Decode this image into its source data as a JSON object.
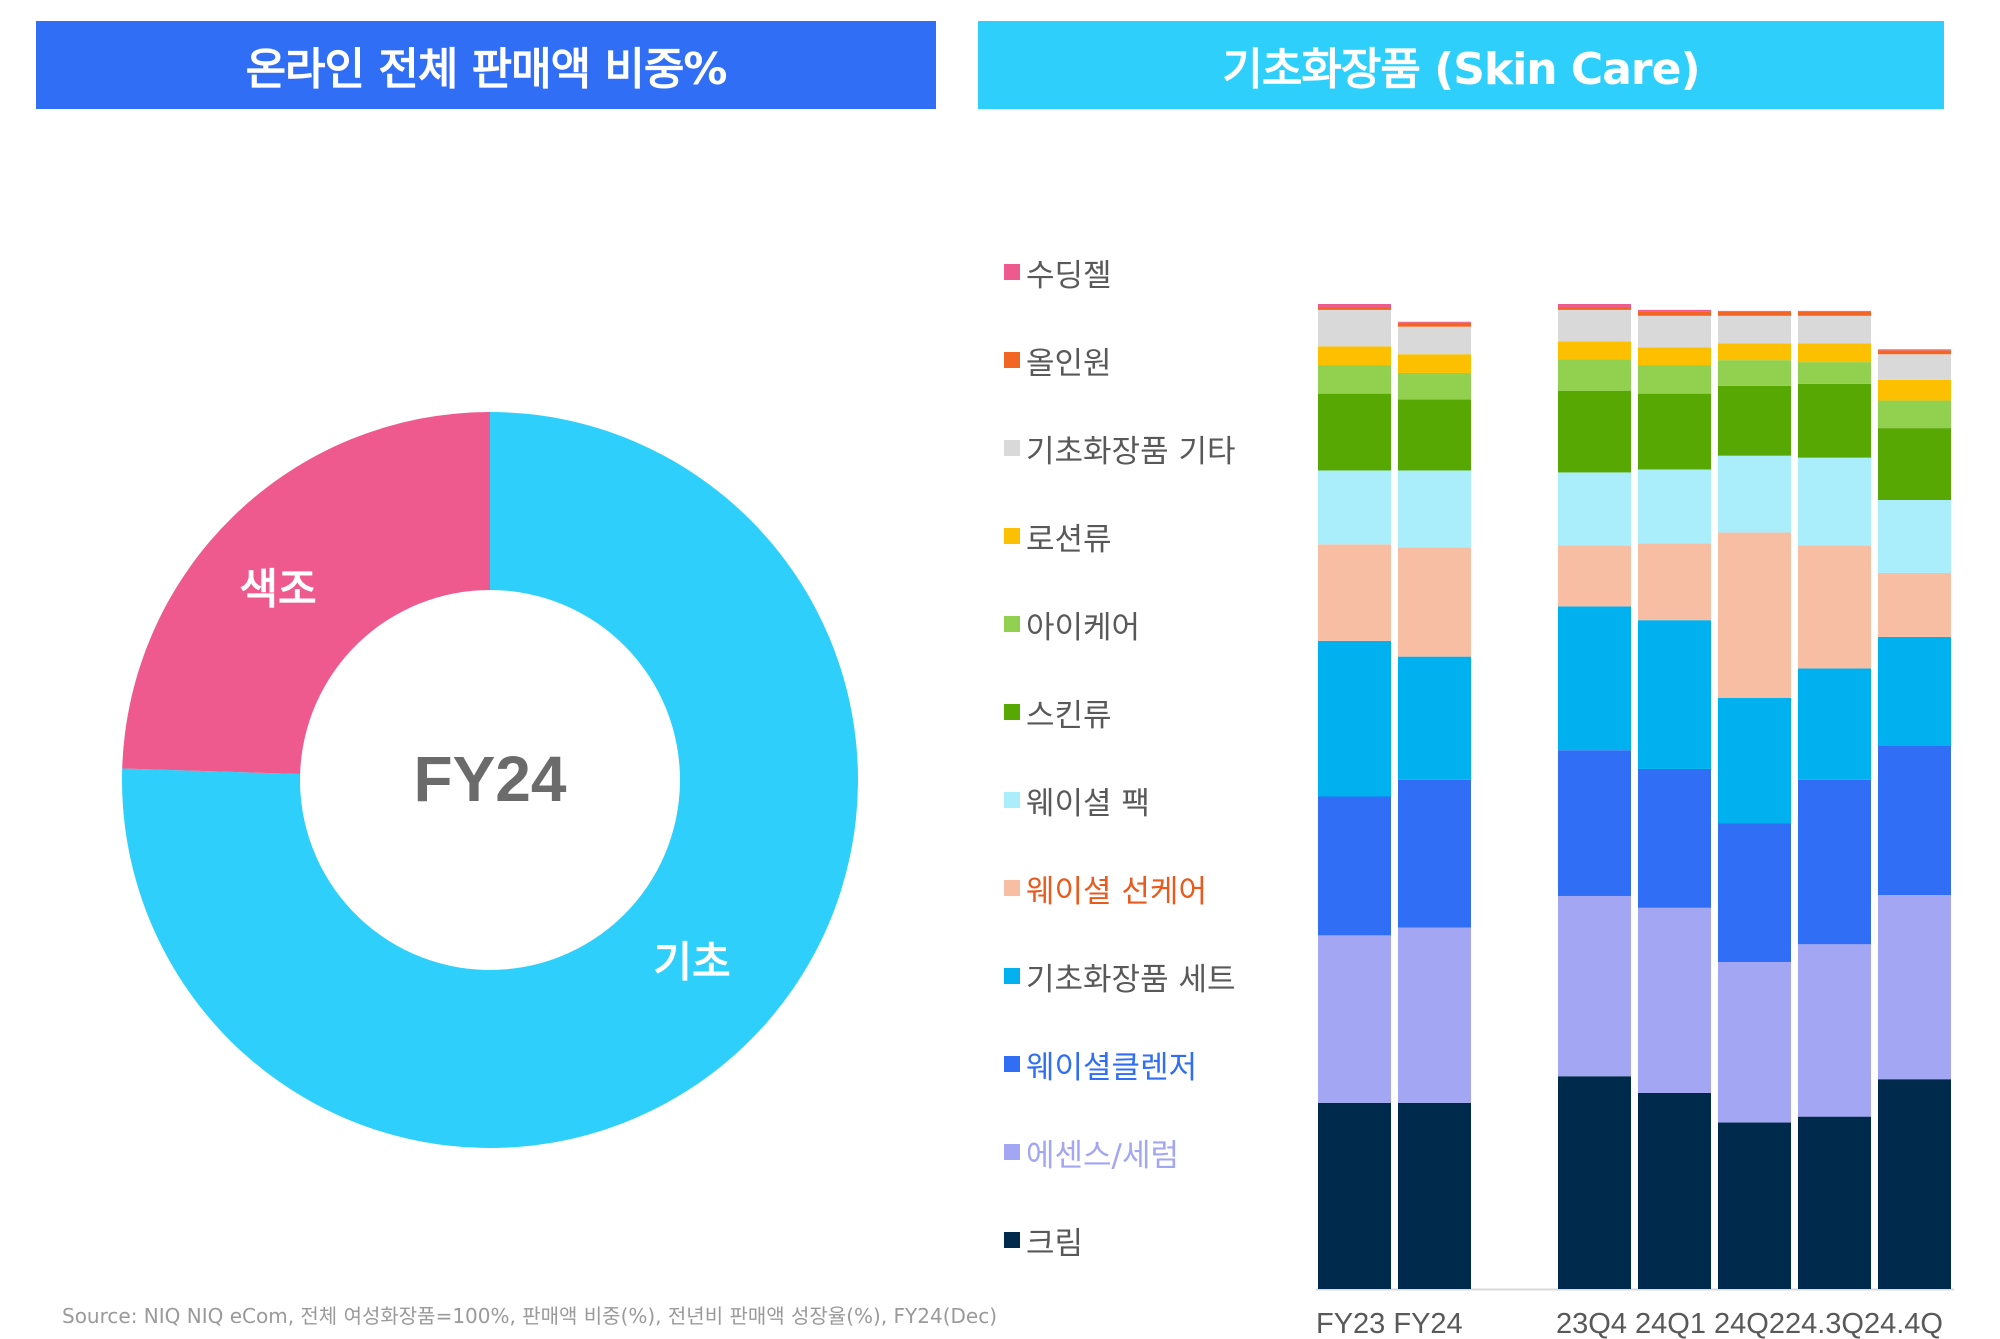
{
  "colors": {
    "banner_left": "#2f6ef5",
    "banner_right": "#2ed0fb",
    "donut_makeup": "#ee5a8e",
    "donut_skincare": "#2ed0fb",
    "category_muted_text": "#595959",
    "source_text": "#9a9a9a"
  },
  "left_panel": {
    "banner_title": "온라인 전체 판매액 비중%"
  },
  "right_panel": {
    "banner_title": "기초화장품 (Skin Care)"
  },
  "source_note": "Source: NIQ NIQ eCom, 전체 여성화장품=100%, 판매액 비중(%), 전년비 판매액 성장율(%), FY24(Dec)",
  "chart_data": [
    {
      "type": "donut",
      "center_label": "FY24",
      "slices": [
        {
          "label": "기초",
          "value": 75.5,
          "color": "#2ed0fb"
        },
        {
          "label": "색조",
          "value": 24.5,
          "color": "#ee5a8e"
        }
      ]
    },
    {
      "type": "stacked_bar",
      "categories": [
        "FY23",
        "FY24",
        "23Q4",
        "24Q1",
        "24Q2",
        "24.3Q",
        "24.4Q"
      ],
      "category_axis_text": [
        "FY23 FY24",
        "23Q4 24Q1 24Q224.3Q24.4Q"
      ],
      "category_groups": [
        [
          0,
          1
        ],
        [
          2,
          3,
          4,
          5,
          6
        ]
      ],
      "series": [
        {
          "name": "크림",
          "color": "#002a4b",
          "label_color": "#595959",
          "values": [
            18.9,
            18.9,
            21.6,
            19.9,
            16.9,
            17.5,
            21.3
          ]
        },
        {
          "name": "에센스/세럼",
          "color": "#a3a6f2",
          "label_color": "#a3a6f2",
          "values": [
            17.0,
            17.8,
            18.3,
            18.8,
            16.3,
            17.5,
            18.7
          ]
        },
        {
          "name": "웨이셜클렌저",
          "color": "#2f6ef5",
          "label_color": "#2f6ef5",
          "values": [
            14.1,
            15.0,
            14.8,
            14.1,
            14.1,
            16.7,
            15.2
          ]
        },
        {
          "name": "기초화장품 세트",
          "color": "#00b0ef",
          "label_color": "#595959",
          "values": [
            15.8,
            12.5,
            14.6,
            15.1,
            12.7,
            11.3,
            11.0
          ]
        },
        {
          "name": "웨이셜 선케어",
          "color": "#f8bea4",
          "label_color": "#eb5a1c",
          "values": [
            9.8,
            11.1,
            6.2,
            7.8,
            16.8,
            12.5,
            6.5
          ]
        },
        {
          "name": "웨이셜 팩",
          "color": "#aaeefc",
          "label_color": "#595959",
          "values": [
            7.5,
            7.8,
            7.4,
            7.5,
            7.8,
            8.9,
            7.4
          ]
        },
        {
          "name": "스킨류",
          "color": "#57a802",
          "label_color": "#595959",
          "values": [
            7.8,
            7.2,
            8.3,
            7.7,
            7.1,
            7.5,
            7.3
          ]
        },
        {
          "name": "아이케어",
          "color": "#92d050",
          "label_color": "#595959",
          "values": [
            2.9,
            2.7,
            3.2,
            2.9,
            2.6,
            2.2,
            2.8
          ]
        },
        {
          "name": "로션류",
          "color": "#fdc000",
          "label_color": "#595959",
          "values": [
            1.9,
            1.9,
            1.8,
            1.8,
            1.7,
            1.9,
            2.1
          ]
        },
        {
          "name": "기초화장품 기타",
          "color": "#d9d9d9",
          "label_color": "#595959",
          "values": [
            3.7,
            2.8,
            3.2,
            3.2,
            2.8,
            2.8,
            2.6
          ]
        },
        {
          "name": "올인원",
          "color": "#f26522",
          "label_color": "#595959",
          "values": [
            0.3,
            0.4,
            0.3,
            0.4,
            0.4,
            0.4,
            0.4
          ]
        },
        {
          "name": "수딩젤",
          "color": "#ee5a8e",
          "label_color": "#595959",
          "values": [
            0.3,
            0.1,
            0.3,
            0.2,
            0.1,
            0.1,
            0.1
          ]
        }
      ],
      "stack_total": 100,
      "legend_position": "left"
    }
  ]
}
